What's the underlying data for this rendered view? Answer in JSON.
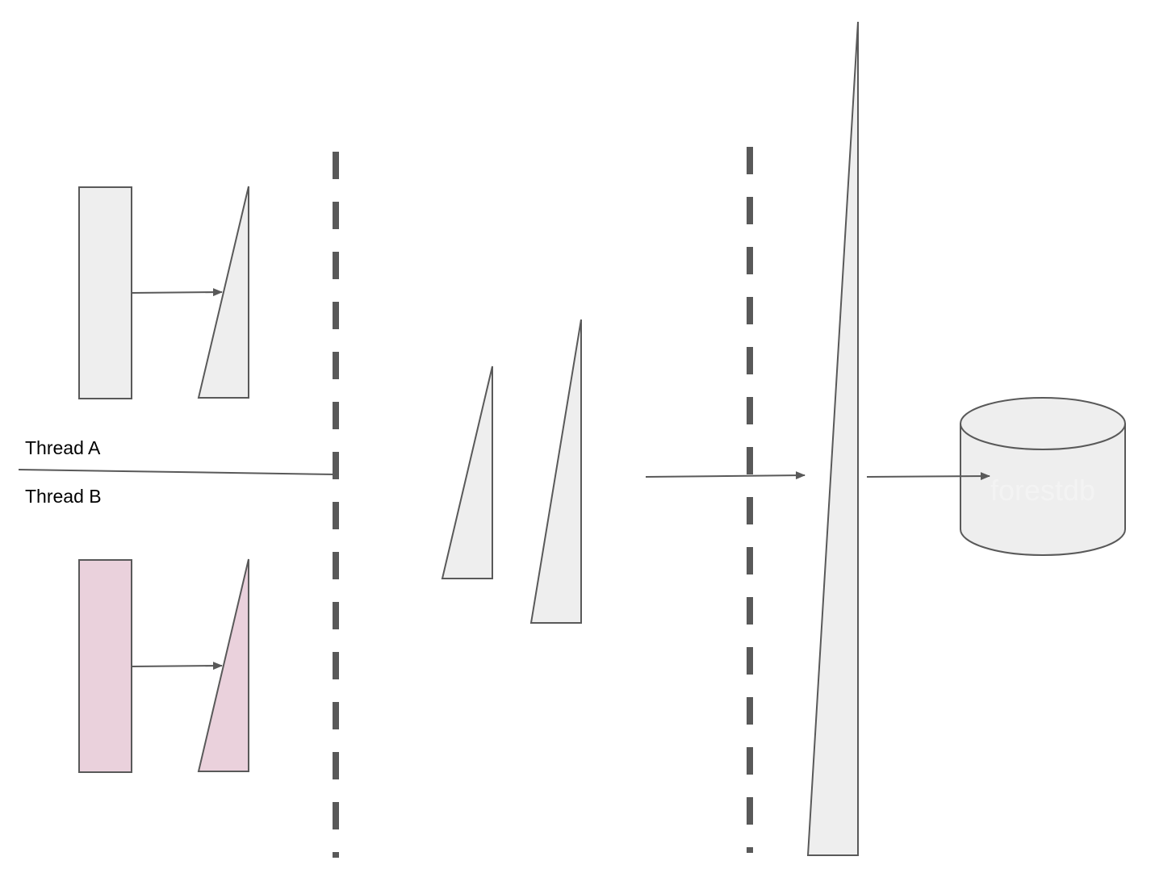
{
  "labels": {
    "thread_a": "Thread A",
    "thread_b": "Thread B",
    "database": "forestdb"
  },
  "colors": {
    "stroke": "#595959",
    "gray_fill": "#eeeeee",
    "pink_fill": "#ead1dc",
    "divider": "#595959",
    "db_label": "#f3f3f3"
  }
}
